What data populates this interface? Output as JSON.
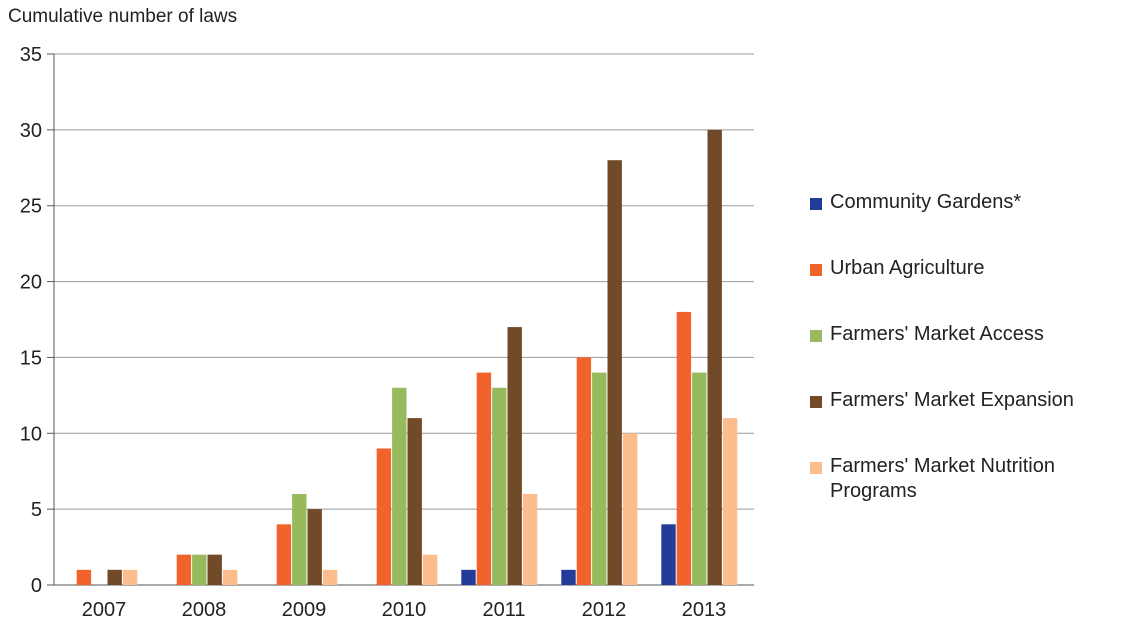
{
  "chart_data": {
    "type": "bar",
    "ylabel": "Cumulative number of laws",
    "xlabel": "",
    "categories": [
      "2007",
      "2008",
      "2009",
      "2010",
      "2011",
      "2012",
      "2013"
    ],
    "ylim": [
      0,
      35
    ],
    "yticks": [
      0,
      5,
      10,
      15,
      20,
      25,
      30,
      35
    ],
    "grid": true,
    "legend_position": "right",
    "series": [
      {
        "name": "Community Gardens*",
        "color": "#233c9a",
        "values": [
          0,
          0,
          0,
          0,
          1,
          1,
          4
        ]
      },
      {
        "name": "Urban Agriculture",
        "color": "#f1632a",
        "values": [
          1,
          2,
          4,
          9,
          14,
          15,
          18
        ]
      },
      {
        "name": "Farmers' Market Access",
        "color": "#97ba5d",
        "values": [
          0,
          2,
          6,
          13,
          13,
          14,
          14
        ]
      },
      {
        "name": "Farmers' Market Expansion",
        "color": "#714a28",
        "values": [
          1,
          2,
          5,
          11,
          17,
          28,
          30
        ]
      },
      {
        "name": "Farmers' Market Nutrition Programs",
        "color": "#fcbd8e",
        "values": [
          1,
          1,
          1,
          2,
          6,
          10,
          11
        ]
      }
    ]
  }
}
